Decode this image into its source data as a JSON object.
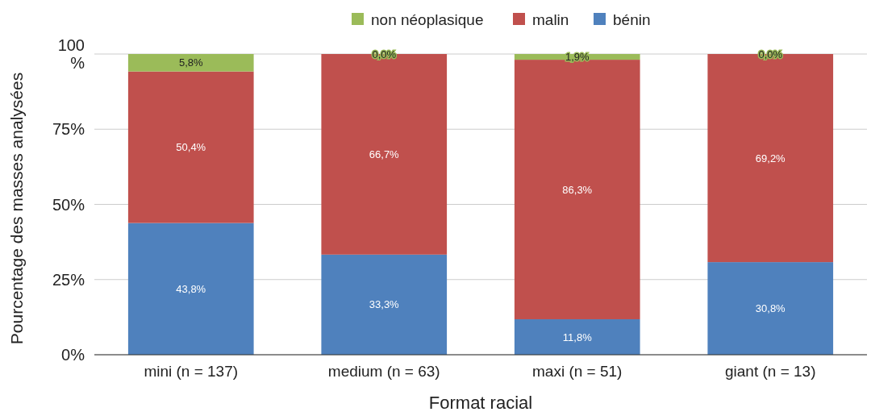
{
  "chart_data": {
    "type": "bar",
    "stacked": true,
    "xlabel": "Format racial",
    "ylabel": "Pourcentage des masses analysées",
    "categories": [
      "mini (n = 137)",
      "medium (n = 63)",
      "maxi (n = 51)",
      "giant (n = 13)"
    ],
    "series": [
      {
        "name": "bénin",
        "color": "#4f81bd",
        "values": [
          43.8,
          33.3,
          11.8,
          30.8
        ],
        "value_labels": [
          "43,8%",
          "33,3%",
          "11,8%",
          "30,8%"
        ]
      },
      {
        "name": "malin",
        "color": "#c0504d",
        "values": [
          50.4,
          66.7,
          86.3,
          69.2
        ],
        "value_labels": [
          "50,4%",
          "66,7%",
          "86,3%",
          "69,2%"
        ]
      },
      {
        "name": "non néoplasique",
        "color": "#9bbb59",
        "values": [
          5.8,
          0.0,
          1.9,
          0.0
        ],
        "value_labels": [
          "5,8%",
          "0,0%",
          "1,9%",
          "0,0%"
        ]
      }
    ],
    "ylim": [
      0,
      100
    ],
    "yticks": [
      {
        "value": 0,
        "label": "0%"
      },
      {
        "value": 25,
        "label": "25%"
      },
      {
        "value": 50,
        "label": "50%"
      },
      {
        "value": 75,
        "label": "75%"
      },
      {
        "value": 100,
        "label": "100 %"
      }
    ],
    "grid": "y",
    "legend": "top"
  }
}
